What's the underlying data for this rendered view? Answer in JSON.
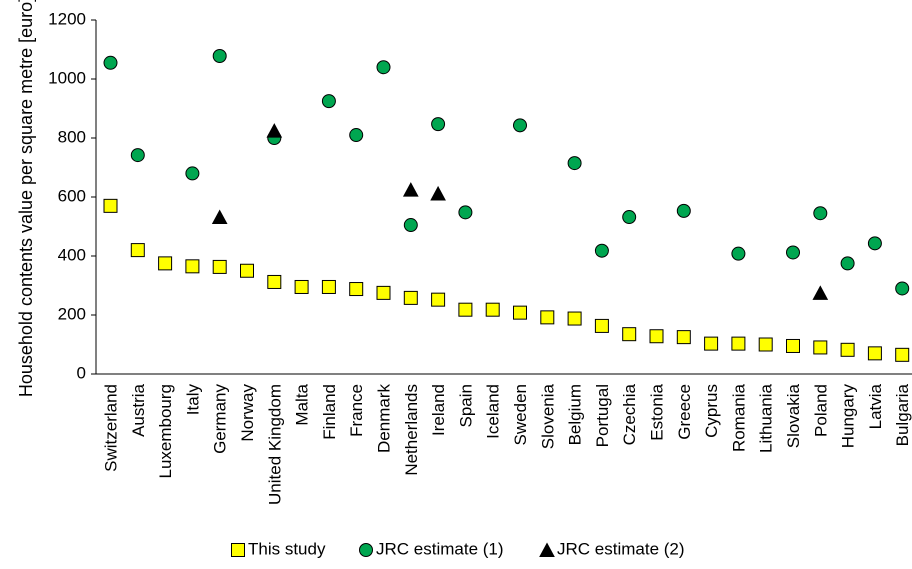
{
  "chart_data": {
    "type": "scatter",
    "ylabel": "Household contents value per square metre [euro]",
    "ylim": [
      0,
      1200
    ],
    "yticks": [
      0,
      200,
      400,
      600,
      800,
      1000,
      1200
    ],
    "grid": false,
    "legend_position": "bottom",
    "categories": [
      "Switzerland",
      "Austria",
      "Luxembourg",
      "Italy",
      "Germany",
      "Norway",
      "United Kingdom",
      "Malta",
      "Finland",
      "France",
      "Denmark",
      "Netherlands",
      "Ireland",
      "Spain",
      "Iceland",
      "Sweden",
      "Slovenia",
      "Belgium",
      "Portugal",
      "Czechia",
      "Estonia",
      "Greece",
      "Cyprus",
      "Romania",
      "Lithuania",
      "Slovakia",
      "Poland",
      "Hungary",
      "Latvia",
      "Bulgaria"
    ],
    "series": [
      {
        "name": "This study",
        "marker": "square",
        "color": "#ffff00",
        "values": [
          570,
          420,
          375,
          365,
          363,
          350,
          312,
          295,
          295,
          288,
          275,
          258,
          252,
          218,
          218,
          208,
          192,
          188,
          163,
          135,
          128,
          125,
          103,
          103,
          100,
          95,
          90,
          82,
          70,
          65
        ]
      },
      {
        "name": "JRC estimate (1)",
        "marker": "circle",
        "color": "#00a650",
        "values": [
          1055,
          742,
          null,
          680,
          1078,
          null,
          800,
          null,
          925,
          810,
          1040,
          505,
          847,
          548,
          null,
          843,
          null,
          715,
          418,
          532,
          null,
          553,
          null,
          408,
          null,
          412,
          545,
          375,
          443,
          290
        ]
      },
      {
        "name": "JRC estimate (2)",
        "marker": "triangle",
        "color": "#000000",
        "values": [
          null,
          null,
          null,
          null,
          532,
          null,
          825,
          null,
          null,
          null,
          null,
          625,
          612,
          null,
          null,
          null,
          null,
          null,
          null,
          null,
          null,
          null,
          null,
          null,
          null,
          null,
          275,
          null,
          null,
          null
        ]
      }
    ]
  }
}
